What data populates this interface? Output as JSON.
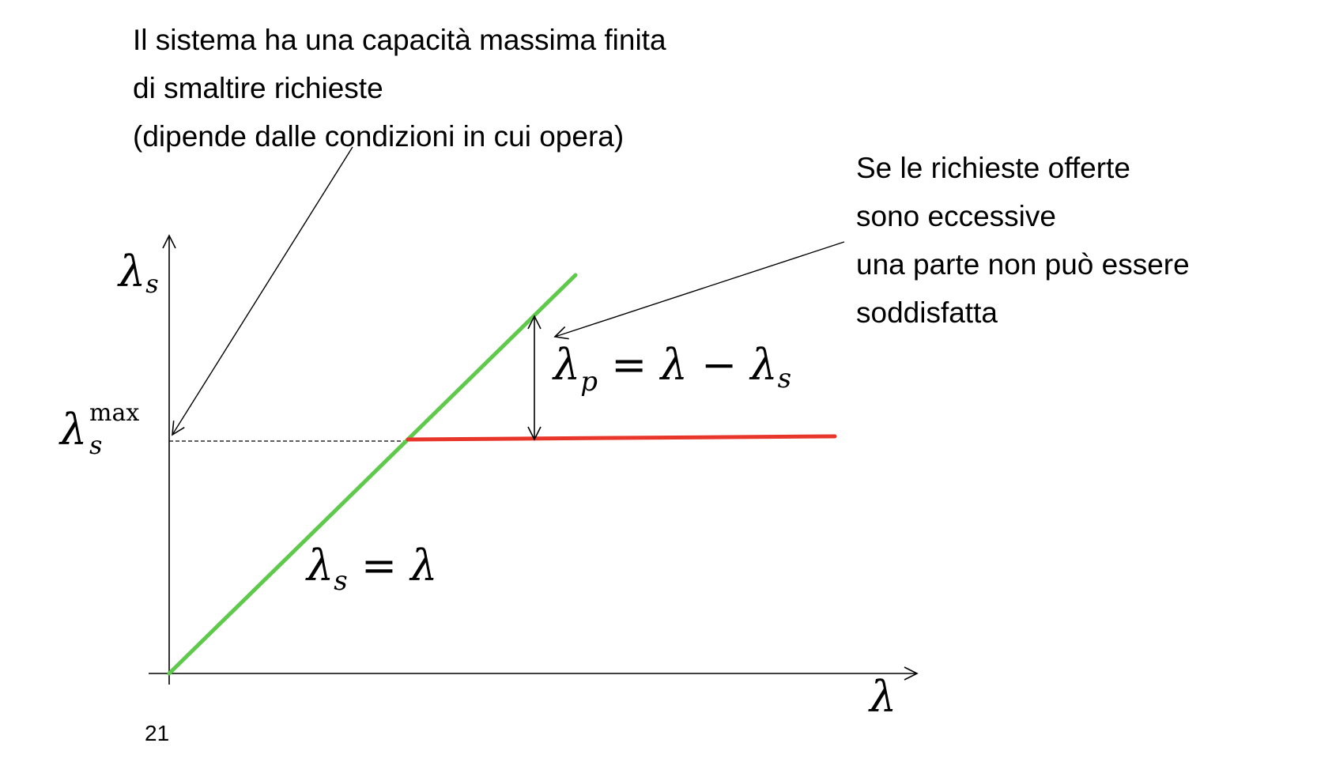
{
  "notes": {
    "capacity": {
      "lines": [
        "Il sistema ha una capacità massima finita",
        "di smaltire richieste",
        "(dipende dalle condizioni in cui opera)"
      ]
    },
    "excess": {
      "lines": [
        "Se le richieste offerte",
        "sono eccessive",
        "una parte non può essere",
        "soddisfatta"
      ]
    }
  },
  "axes": {
    "y_label": {
      "symbol": "λ",
      "subscript": "s"
    },
    "x_label": {
      "symbol": "λ"
    },
    "y_max_label": {
      "symbol": "λ",
      "subscript": "s",
      "superscript": "max"
    }
  },
  "formulas": {
    "lost": {
      "lhs": "λ",
      "lhs_sub": "p",
      "rhs": " = λ − λ",
      "rhs_sub": "s"
    },
    "served": {
      "lhs": "λ",
      "lhs_sub": "s",
      "rhs": " = λ"
    }
  },
  "colors": {
    "served_line": "#5ec94a",
    "saturation_line": "#e8362b",
    "axis": "#000000"
  },
  "page_number": "21"
}
